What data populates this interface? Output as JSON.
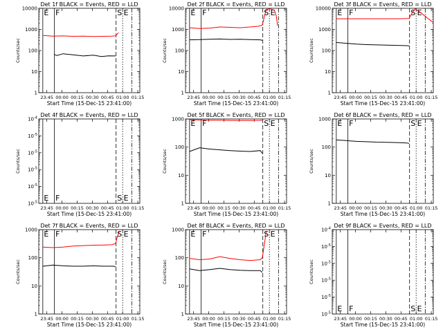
{
  "colors": {
    "events": "#000000",
    "lld": "#ff0000",
    "axes": "#000000",
    "background": "#ffffff"
  },
  "chart_data": [
    {
      "type": "line",
      "title": "Det 1f BLACK = Events, RED = LLD",
      "xlabel": "Start Time (15-Dec-15 23:41:00)",
      "ylabel": "Counts/sec",
      "yscale": "log",
      "ylim": [
        1,
        10000
      ],
      "xlim": [
        -4,
        96
      ],
      "xticks": [
        4,
        19,
        34,
        49,
        64,
        79,
        94
      ],
      "xticklabels": [
        "23:45",
        "00:00",
        "00:15",
        "00:30",
        "00:45",
        "01:00",
        "01:15"
      ],
      "yticklabels": [
        "1",
        "10",
        "100",
        "1000",
        "10000"
      ],
      "markers": {
        "E": [
          0
        ],
        "F": [
          11.5
        ],
        "S": [
          72.5
        ],
        "E2": [
          79
        ],
        "extra_dashed": [
          88
        ]
      },
      "series": [
        {
          "role": "events",
          "points": [
            [
              11,
              65
            ],
            [
              14,
              58
            ],
            [
              20,
              70
            ],
            [
              30,
              62
            ],
            [
              40,
              55
            ],
            [
              50,
              60
            ],
            [
              58,
              52
            ],
            [
              65,
              56
            ],
            [
              72,
              55
            ]
          ]
        },
        {
          "role": "lld",
          "points": [
            [
              0,
              520
            ],
            [
              10,
              480
            ],
            [
              20,
              490
            ],
            [
              30,
              470
            ],
            [
              40,
              480
            ],
            [
              50,
              460
            ],
            [
              60,
              470
            ],
            [
              68,
              480
            ],
            [
              72,
              500
            ],
            [
              75,
              700
            ]
          ]
        }
      ]
    },
    {
      "type": "line",
      "title": "Det 2f BLACK = Events, RED = LLD",
      "xlabel": "Start Time (15-Dec-15 23:41:00)",
      "ylabel": "Counts/sec",
      "yscale": "log",
      "ylim": [
        1,
        10000
      ],
      "xlim": [
        -4,
        96
      ],
      "xticks": [
        4,
        19,
        34,
        49,
        64,
        79,
        94
      ],
      "xticklabels": [
        "23:45",
        "00:00",
        "00:15",
        "00:30",
        "00:45",
        "01:00",
        "01:15"
      ],
      "yticklabels": [
        "1",
        "10",
        "100",
        "1000",
        "10000"
      ],
      "markers": {
        "E": [
          0
        ],
        "F": [
          11.5
        ],
        "S": [
          72.5
        ],
        "E2": [
          79
        ],
        "extra_dashed": [
          88
        ]
      },
      "series": [
        {
          "role": "events",
          "points": [
            [
              0,
              320
            ],
            [
              10,
              330
            ],
            [
              20,
              340
            ],
            [
              30,
              350
            ],
            [
              40,
              335
            ],
            [
              50,
              340
            ],
            [
              60,
              330
            ],
            [
              70,
              320
            ],
            [
              72,
              300
            ]
          ]
        },
        {
          "role": "lld",
          "points": [
            [
              0,
              1200
            ],
            [
              10,
              1100
            ],
            [
              20,
              1150
            ],
            [
              30,
              1300
            ],
            [
              40,
              1250
            ],
            [
              50,
              1200
            ],
            [
              60,
              1300
            ],
            [
              68,
              1400
            ],
            [
              72,
              1600
            ],
            [
              74,
              4000
            ],
            [
              76,
              9000
            ],
            [
              80,
              9500
            ],
            [
              84,
              8000
            ],
            [
              86,
              4000
            ],
            [
              87,
              1500
            ]
          ]
        }
      ]
    },
    {
      "type": "line",
      "title": "Det 3f BLACK = Events, RED = LLD",
      "xlabel": "Start Time (15-Dec-15 23:41:00)",
      "ylabel": "Counts/sec",
      "yscale": "log",
      "ylim": [
        1,
        10000
      ],
      "xlim": [
        -4,
        96
      ],
      "xticks": [
        4,
        19,
        34,
        49,
        64,
        79,
        94
      ],
      "xticklabels": [
        "23:45",
        "00:00",
        "00:15",
        "00:30",
        "00:45",
        "01:00",
        "01:15"
      ],
      "yticklabels": [
        "1",
        "10",
        "100",
        "1000",
        "10000"
      ],
      "markers": {
        "E": [
          0
        ],
        "F": [
          11.5
        ],
        "S": [
          72.5
        ],
        "E2": [
          79
        ],
        "extra_dashed": [
          88
        ]
      },
      "series": [
        {
          "role": "events",
          "points": [
            [
              0,
              240
            ],
            [
              10,
              220
            ],
            [
              20,
              200
            ],
            [
              30,
              190
            ],
            [
              40,
              185
            ],
            [
              50,
              180
            ],
            [
              60,
              175
            ],
            [
              70,
              170
            ],
            [
              72,
              165
            ]
          ]
        },
        {
          "role": "lld",
          "points": [
            [
              0,
              3200
            ],
            [
              20,
              3200
            ],
            [
              40,
              3200
            ],
            [
              60,
              3200
            ],
            [
              72,
              3300
            ],
            [
              75,
              6000
            ],
            [
              78,
              9500
            ],
            [
              82,
              7000
            ],
            [
              86,
              5000
            ],
            [
              90,
              3500
            ],
            [
              94,
              2500
            ],
            [
              96,
              2200
            ]
          ]
        }
      ]
    },
    {
      "type": "line",
      "title": "Det 4f BLACK = Events, RED = LLD",
      "xlabel": "Start Time (15-Dec-15 23:41:00)",
      "ylabel": "Counts/sec",
      "yscale": "log",
      "ylim": [
        1e-05,
        0.0001
      ],
      "xlim": [
        -4,
        96
      ],
      "xticks": [
        4,
        19,
        34,
        49,
        64,
        79,
        94
      ],
      "xticklabels": [
        "23:45",
        "00:00",
        "00:15",
        "00:30",
        "00:45",
        "01:00",
        "01:15"
      ],
      "yticklabels": [
        "10^-5",
        "10^-5",
        "10^-5",
        "10^-5",
        "10^-5",
        "10^-4"
      ],
      "markers": {
        "E": [
          0
        ],
        "F": [
          11.5
        ],
        "S": [
          72.5
        ],
        "E2": [
          79
        ],
        "extra_dashed": [
          88
        ]
      },
      "series": []
    },
    {
      "type": "line",
      "title": "Det 5f BLACK = Events, RED = LLD",
      "xlabel": "Start Time (15-Dec-15 23:41:00)",
      "ylabel": "Counts/sec",
      "yscale": "log",
      "ylim": [
        1,
        1000
      ],
      "xlim": [
        -4,
        96
      ],
      "xticks": [
        4,
        19,
        34,
        49,
        64,
        79,
        94
      ],
      "xticklabels": [
        "23:45",
        "00:00",
        "00:15",
        "00:30",
        "00:45",
        "01:00",
        "01:15"
      ],
      "yticklabels": [
        "1",
        "10",
        "100",
        "1000"
      ],
      "markers": {
        "E": [
          0
        ],
        "F": [
          11.5
        ],
        "S": [
          72.5
        ],
        "E2": [
          79
        ],
        "extra_dashed": [
          88
        ]
      },
      "series": [
        {
          "role": "events",
          "points": [
            [
              0,
              70
            ],
            [
              10,
              95
            ],
            [
              20,
              85
            ],
            [
              30,
              80
            ],
            [
              40,
              75
            ],
            [
              50,
              72
            ],
            [
              60,
              70
            ],
            [
              70,
              75
            ],
            [
              72,
              60
            ]
          ]
        },
        {
          "role": "lld",
          "points": [
            [
              0,
              950
            ],
            [
              10,
              920
            ],
            [
              20,
              900
            ],
            [
              30,
              900
            ],
            [
              40,
              890
            ],
            [
              50,
              880
            ],
            [
              60,
              880
            ],
            [
              70,
              890
            ],
            [
              72,
              900
            ]
          ]
        }
      ]
    },
    {
      "type": "line",
      "title": "Det 6f BLACK = Events, RED = LLD",
      "xlabel": "Start Time (15-Dec-15 23:41:00)",
      "ylabel": "Counts/sec",
      "yscale": "log",
      "ylim": [
        1,
        1000
      ],
      "xlim": [
        -4,
        96
      ],
      "xticks": [
        4,
        19,
        34,
        49,
        64,
        79,
        94
      ],
      "xticklabels": [
        "23:45",
        "00:00",
        "00:15",
        "00:30",
        "00:45",
        "01:00",
        "01:15"
      ],
      "yticklabels": [
        "1",
        "10",
        "100",
        "1000"
      ],
      "markers": {
        "E": [
          0
        ],
        "F": [
          11.5
        ],
        "S": [
          72.5
        ],
        "E2": [
          79
        ],
        "extra_dashed": [
          88
        ]
      },
      "series": [
        {
          "role": "events",
          "points": [
            [
              0,
              180
            ],
            [
              10,
              170
            ],
            [
              20,
              160
            ],
            [
              30,
              155
            ],
            [
              40,
              150
            ],
            [
              50,
              148
            ],
            [
              60,
              145
            ],
            [
              70,
              140
            ],
            [
              72,
              135
            ]
          ]
        }
      ]
    },
    {
      "type": "line",
      "title": "Det 7f BLACK = Events, RED = LLD",
      "xlabel": "Start Time (15-Dec-15 23:41:00)",
      "ylabel": "Counts/sec",
      "yscale": "log",
      "ylim": [
        1,
        1000
      ],
      "xlim": [
        -4,
        96
      ],
      "xticks": [
        4,
        19,
        34,
        49,
        64,
        79,
        94
      ],
      "xticklabels": [
        "23:45",
        "00:00",
        "00:15",
        "00:30",
        "00:45",
        "01:00",
        "01:15"
      ],
      "yticklabels": [
        "1",
        "10",
        "100",
        "1000"
      ],
      "markers": {
        "E": [
          0
        ],
        "F": [
          11.5
        ],
        "S": [
          72.5
        ],
        "E2": [
          79
        ],
        "extra_dashed": [
          88
        ]
      },
      "series": [
        {
          "role": "events",
          "points": [
            [
              0,
              50
            ],
            [
              10,
              55
            ],
            [
              20,
              52
            ],
            [
              30,
              50
            ],
            [
              40,
              50
            ],
            [
              50,
              52
            ],
            [
              60,
              50
            ],
            [
              70,
              50
            ],
            [
              72,
              48
            ]
          ]
        },
        {
          "role": "lld",
          "points": [
            [
              0,
              240
            ],
            [
              10,
              230
            ],
            [
              20,
              240
            ],
            [
              30,
              260
            ],
            [
              40,
              270
            ],
            [
              50,
              280
            ],
            [
              60,
              285
            ],
            [
              68,
              290
            ],
            [
              72,
              320
            ],
            [
              74,
              600
            ],
            [
              76,
              900
            ]
          ]
        }
      ]
    },
    {
      "type": "line",
      "title": "Det 8f BLACK = Events, RED = LLD",
      "xlabel": "Start Time (15-Dec-15 23:41:00)",
      "ylabel": "Counts/sec",
      "yscale": "log",
      "ylim": [
        1,
        1000
      ],
      "xlim": [
        -4,
        96
      ],
      "xticks": [
        4,
        19,
        34,
        49,
        64,
        79,
        94
      ],
      "xticklabels": [
        "23:45",
        "00:00",
        "00:15",
        "00:30",
        "00:45",
        "01:00",
        "01:15"
      ],
      "yticklabels": [
        "1",
        "10",
        "100",
        "1000"
      ],
      "markers": {
        "E": [
          0
        ],
        "F": [
          11.5
        ],
        "S": [
          72.5
        ],
        "E2": [
          79
        ],
        "extra_dashed": [
          88
        ]
      },
      "series": [
        {
          "role": "events",
          "points": [
            [
              0,
              40
            ],
            [
              10,
              35
            ],
            [
              20,
              38
            ],
            [
              30,
              42
            ],
            [
              40,
              38
            ],
            [
              50,
              36
            ],
            [
              60,
              35
            ],
            [
              70,
              35
            ],
            [
              72,
              30
            ]
          ]
        },
        {
          "role": "lld",
          "points": [
            [
              0,
              95
            ],
            [
              10,
              85
            ],
            [
              20,
              90
            ],
            [
              30,
              110
            ],
            [
              40,
              95
            ],
            [
              50,
              85
            ],
            [
              60,
              80
            ],
            [
              70,
              85
            ],
            [
              72,
              100
            ],
            [
              74,
              300
            ],
            [
              76,
              900
            ]
          ]
        }
      ]
    },
    {
      "type": "line",
      "title": "Det 9f BLACK = Events, RED = LLD",
      "xlabel": "Start Time (15-Dec-15 23:41:00)",
      "ylabel": "Counts/sec",
      "yscale": "log",
      "ylim": [
        1e-05,
        0.0001
      ],
      "xlim": [
        -4,
        96
      ],
      "xticks": [
        4,
        19,
        34,
        49,
        64,
        79,
        94
      ],
      "xticklabels": [
        "23:45",
        "00:00",
        "00:15",
        "00:30",
        "00:45",
        "01:00",
        "01:15"
      ],
      "yticklabels": [
        "10^-5",
        "10^-5",
        "10^-5",
        "10^-5",
        "10^-5",
        "10^-4"
      ],
      "markers": {
        "E": [
          0
        ],
        "F": [
          11.5
        ],
        "S": [
          72.5
        ],
        "E2": [
          79
        ],
        "extra_dashed": [
          88
        ]
      },
      "series": []
    }
  ]
}
